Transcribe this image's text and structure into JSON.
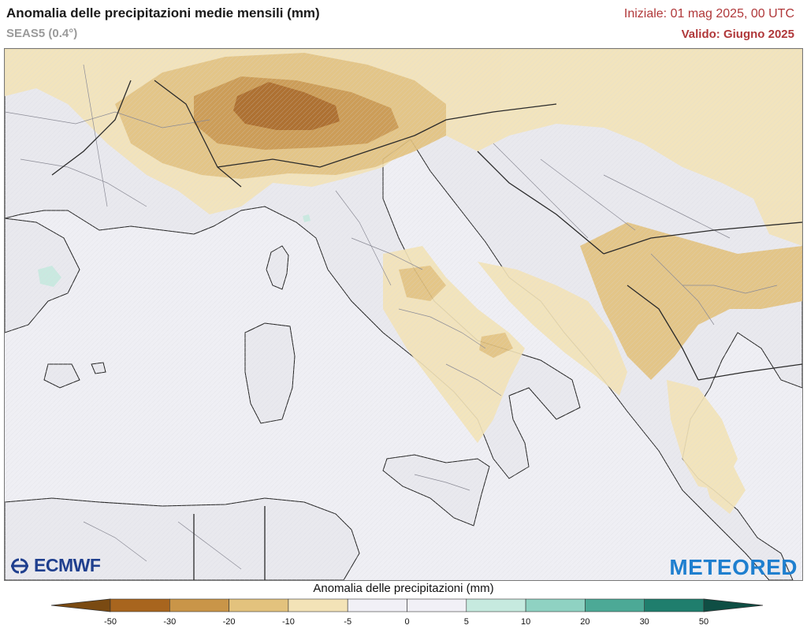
{
  "header": {
    "title": "Anomalia delle precipitazioni medie mensili (mm)",
    "model": "SEAS5 (0.4°)",
    "initial": "Iniziale: 01 mag 2025, 00 UTC",
    "valid": "Valido: Giugno 2025"
  },
  "logos": {
    "left": "ECMWF",
    "right": "METEORED"
  },
  "colorbar": {
    "title": "Anomalia delle precipitazioni (mm)",
    "ticks": [
      "-50",
      "-30",
      "-20",
      "-10",
      "-5",
      "0",
      "5",
      "10",
      "20",
      "30",
      "50"
    ],
    "colors": [
      "#7a4a12",
      "#a8651e",
      "#c99548",
      "#e3c27d",
      "#f3e3b7",
      "#f1f0f6",
      "#f1f0f6",
      "#c6eadf",
      "#8fd2c2",
      "#4ca996",
      "#1f7e6d",
      "#0f4e44"
    ]
  },
  "map": {
    "sea_color": "#efeff4",
    "land_color": "#e9e9ee",
    "anomaly_colors": {
      "dry_light": "#f3e3b7",
      "dry_medium": "#e3c27d",
      "dry_strong": "#c99548",
      "dry_extreme": "#a8651e",
      "wet_light": "#c6eadf"
    }
  }
}
